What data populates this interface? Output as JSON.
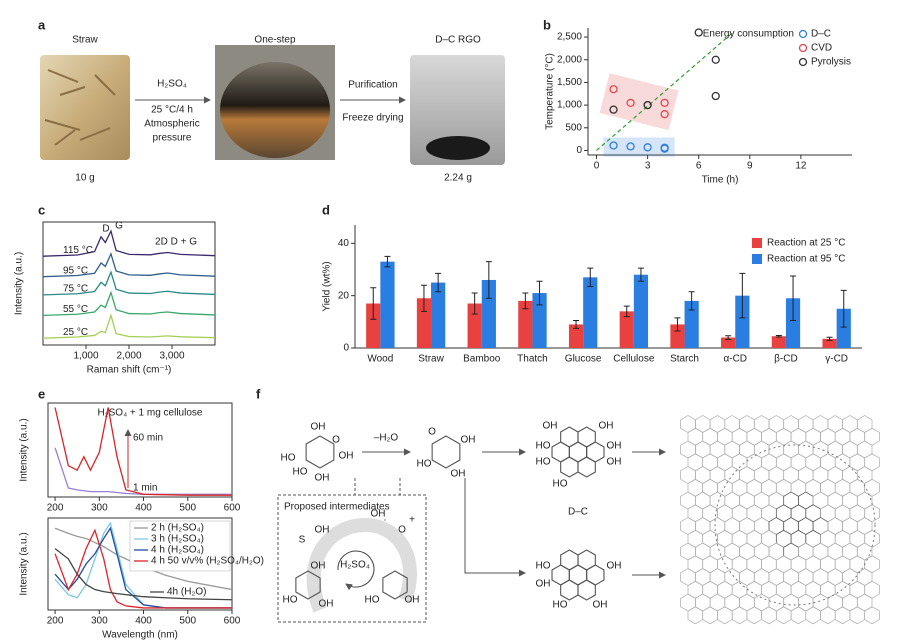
{
  "panel_labels": [
    "a",
    "b",
    "c",
    "d",
    "e",
    "f"
  ],
  "panel_a": {
    "titles": [
      "Straw",
      "One-step",
      "D–C RGO"
    ],
    "conditions": [
      "H₂SO₄",
      "25 °C/4 h",
      "Atmospheric",
      "pressure"
    ],
    "post": [
      "Purification",
      "Freeze drying"
    ],
    "masses": [
      "10 g",
      "2.24 g"
    ]
  },
  "chart_data": [
    {
      "type": "scatter",
      "x_label": "Time (h)",
      "y_label": "Temperature (°C)",
      "xlim": [
        -0.5,
        15
      ],
      "ylim": [
        -100,
        2700
      ],
      "xticks": [
        0,
        3,
        6,
        9,
        12
      ],
      "yticks": [
        0,
        500,
        {
          "value": 1000,
          "label": "1,000"
        },
        {
          "value": 1500,
          "label": "1,500"
        },
        {
          "value": 2000,
          "label": "2,000"
        },
        {
          "value": 2500,
          "label": "2,500"
        }
      ],
      "series": [
        {
          "name": "D–C",
          "color": "#2e7fd6",
          "x": [
            1,
            2,
            3,
            4,
            4
          ],
          "values": [
            110,
            90,
            70,
            60,
            40
          ]
        },
        {
          "name": "CVD",
          "color": "#e0474c",
          "x": [
            1,
            2,
            3,
            4,
            4
          ],
          "values": [
            1350,
            1050,
            1000,
            1050,
            800
          ]
        },
        {
          "name": "Pyrolysis",
          "color": "#333333",
          "x": [
            1,
            3,
            6,
            7,
            7
          ],
          "values": [
            900,
            1000,
            2600,
            2000,
            1200
          ]
        }
      ],
      "trend": {
        "label": "Energy consumption",
        "color": "#2ca02c",
        "x": [
          0,
          8
        ],
        "values": [
          0,
          2600
        ]
      },
      "legend": "upper right"
    },
    {
      "type": "bar",
      "y_label": "Yield (wt%)",
      "categories": [
        "Wood",
        "Straw",
        "Bamboo",
        "Thatch",
        "Glucose",
        "Cellulose",
        "Starch",
        "α-CD",
        "β-CD",
        "γ-CD"
      ],
      "ylim": [
        0,
        47
      ],
      "yticks": [
        0,
        20,
        40
      ],
      "series": [
        {
          "name": "Reaction at 25 °C",
          "color": "#e8413f",
          "values": [
            17,
            19,
            17,
            18,
            9,
            14,
            9,
            4,
            4.5,
            3.5
          ],
          "errors": [
            6,
            5,
            4,
            3,
            1.5,
            2,
            2.5,
            0.7,
            0.3,
            0.6
          ]
        },
        {
          "name": "Reaction at 95 °C",
          "color": "#2a7de1",
          "values": [
            33,
            25,
            26,
            21,
            27,
            28,
            18,
            20,
            19,
            15
          ],
          "errors": [
            2,
            3.5,
            7,
            4.5,
            3.5,
            2.5,
            3.5,
            8.5,
            8.5,
            7
          ]
        }
      ],
      "legend": "upper right"
    },
    {
      "type": "line",
      "x_label": "Raman shift (cm⁻¹)",
      "y_label": "Intensity (a.u.)",
      "xlim": [
        0,
        4000
      ],
      "xticks": [
        {
          "value": 1000,
          "label": "1,000"
        },
        {
          "value": 2000,
          "label": "2,000"
        },
        {
          "value": 3000,
          "label": "3,000"
        }
      ],
      "ylim": [
        0,
        5.4
      ],
      "x": [
        0,
        800,
        1200,
        1350,
        1450,
        1580,
        1700,
        2000,
        2500,
        2700,
        2900,
        3200,
        4000
      ],
      "series": [
        {
          "name": "115 °C",
          "color": "#3b2a6b",
          "values": [
            3.9,
            3.95,
            4.1,
            4.75,
            4.5,
            5.0,
            4.15,
            3.98,
            3.96,
            4.02,
            4.06,
            3.98,
            3.92
          ]
        },
        {
          "name": "95 °C",
          "color": "#2f5f8a",
          "values": [
            3.0,
            3.05,
            3.15,
            3.6,
            3.45,
            4.0,
            3.25,
            3.08,
            3.06,
            3.12,
            3.16,
            3.08,
            3.02
          ]
        },
        {
          "name": "75 °C",
          "color": "#2a8a8a",
          "values": [
            2.2,
            2.25,
            2.35,
            2.75,
            2.6,
            3.2,
            2.45,
            2.28,
            2.26,
            2.32,
            2.36,
            2.28,
            2.22
          ]
        },
        {
          "name": "55 °C",
          "color": "#3aa86b",
          "values": [
            1.3,
            1.35,
            1.45,
            1.75,
            1.65,
            2.3,
            1.55,
            1.38,
            1.36,
            1.42,
            1.45,
            1.38,
            1.32
          ]
        },
        {
          "name": "25 °C",
          "color": "#a6d05a",
          "values": [
            0.3,
            0.35,
            0.42,
            0.6,
            0.55,
            1.3,
            0.5,
            0.37,
            0.35,
            0.38,
            0.4,
            0.36,
            0.32
          ]
        }
      ],
      "annotations": [
        "D",
        "G",
        "2D D + G"
      ]
    },
    {
      "type": "line",
      "y_label": "Intensity (a.u.)",
      "inset_label": "H₂SO₄ + 1 mg cellulose",
      "xlim": [
        184,
        600
      ],
      "xticks": [
        200,
        300,
        400,
        500,
        600
      ],
      "ylim": [
        0,
        1.05
      ],
      "x": [
        200,
        230,
        250,
        265,
        280,
        300,
        320,
        340,
        360,
        400,
        500,
        600
      ],
      "series": [
        {
          "name": "1 min",
          "color": "#9b7fd4",
          "values": [
            0.55,
            0.1,
            0.08,
            0.07,
            0.06,
            0.06,
            0.06,
            0.05,
            0.04,
            0.03,
            0.03,
            0.03
          ]
        },
        {
          "name": "60 min",
          "color": "#d62728",
          "values": [
            1.0,
            0.35,
            0.3,
            0.45,
            0.3,
            0.5,
            1.0,
            0.45,
            0.08,
            0.03,
            0.02,
            0.02
          ]
        }
      ]
    },
    {
      "type": "line",
      "x_label": "Wavelength (nm)",
      "y_label": "Intensity (a.u.)",
      "xlim": [
        184,
        600
      ],
      "xticks": [
        200,
        300,
        400,
        500,
        600
      ],
      "ylim": [
        0,
        0.9
      ],
      "x": [
        200,
        230,
        250,
        270,
        290,
        310,
        325,
        340,
        360,
        400,
        450,
        500,
        600
      ],
      "series": [
        {
          "name": "2 h (H₂SO₄)",
          "color": "#999999",
          "values": [
            0.8,
            0.75,
            0.72,
            0.7,
            0.66,
            0.62,
            0.58,
            0.54,
            0.5,
            0.42,
            0.34,
            0.28,
            0.2
          ]
        },
        {
          "name": "3 h (H₂SO₄)",
          "color": "#7ec8e3",
          "values": [
            0.3,
            0.15,
            0.12,
            0.25,
            0.5,
            0.75,
            0.85,
            0.6,
            0.25,
            0.05,
            0.02,
            0.02,
            0.02
          ]
        },
        {
          "name": "4 h (H₂SO₄)",
          "color": "#1f4e9c",
          "values": [
            0.35,
            0.2,
            0.3,
            0.45,
            0.55,
            0.7,
            0.8,
            0.55,
            0.2,
            0.05,
            0.02,
            0.02,
            0.02
          ]
        },
        {
          "name": "4 h 50 v/v% (H₂SO₄/H₂O)",
          "color": "#e0242b",
          "values": [
            0.55,
            0.2,
            0.35,
            0.6,
            0.78,
            0.5,
            0.2,
            0.08,
            0.04,
            0.02,
            0.02,
            0.02,
            0.02
          ]
        },
        {
          "name": "4h (H₂O)",
          "color": "#444444",
          "values": [
            0.6,
            0.5,
            0.35,
            0.25,
            0.2,
            0.18,
            0.17,
            0.16,
            0.15,
            0.13,
            0.12,
            0.11,
            0.1
          ]
        }
      ]
    }
  ],
  "panel_f": {
    "step": "–H₂O",
    "product": "D–C",
    "intermediates": "Proposed intermediates",
    "acid": "H₂SO₄",
    "atom_labels": [
      "OH",
      "O",
      "HO",
      "HO",
      "OH",
      "OH",
      "O",
      "HO",
      "OH",
      "OH",
      "OH",
      "OH",
      "HO",
      "HO",
      "OH",
      "OH",
      "HO",
      "HO",
      "OH",
      "OH",
      "HO",
      "OH",
      "S",
      "OH",
      "HO",
      "OH",
      "OH",
      "HO",
      "OH",
      "OH",
      "O",
      "+"
    ]
  }
}
